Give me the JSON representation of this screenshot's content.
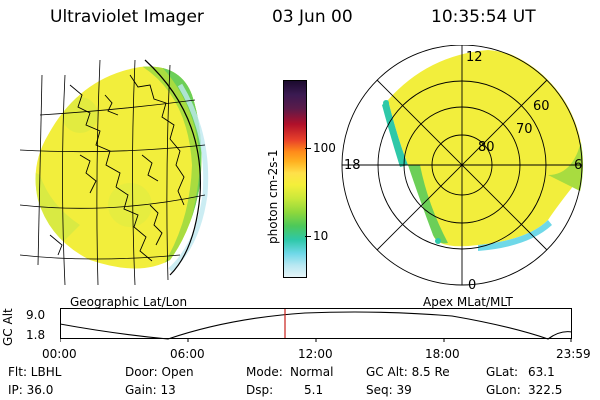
{
  "header": {
    "title": "Ultraviolet Imager",
    "date": "03 Jun 00",
    "time": "10:35:54 UT"
  },
  "geo_panel": {
    "label": "Geographic Lat/Lon"
  },
  "polar_panel": {
    "label": "Apex MLat/MLT",
    "lat_labels": [
      "60",
      "70",
      "80"
    ],
    "mlt_labels": {
      "top": "12",
      "left": "18",
      "right": "6",
      "bottom": "0"
    }
  },
  "colorbar": {
    "unit_label": "photon cm-2s-1",
    "ticks": [
      "100",
      "10"
    ],
    "colors": [
      "#1b0a2e",
      "#3b1a52",
      "#5a1b4a",
      "#b0102a",
      "#e8402a",
      "#ff8a1a",
      "#ffb020",
      "#ffe04a",
      "#f4ef3a",
      "#c9e83a",
      "#8fd83c",
      "#4cc85a",
      "#2ec8a8",
      "#6fd8e8",
      "#b8e8f2",
      "#e6f4f8"
    ]
  },
  "altitude_plot": {
    "ylabel": "GC Alt",
    "y_ticks": [
      "9.0",
      "1.8"
    ],
    "x_ticks": [
      "00:00",
      "06:00",
      "12:00",
      "18:00",
      "23:59"
    ],
    "current_time_marker_color": "#c8201c"
  },
  "info": {
    "row1": {
      "flt": "Flt: LBHL",
      "door": "Door: Open",
      "mode_label": "Mode:",
      "mode_value": "Normal",
      "gcalt": "GC Alt: 8.5 Re",
      "glat_label": "GLat:",
      "glat_value": "63.1"
    },
    "row2": {
      "ip": "IP: 36.0",
      "gain": "Gain: 13",
      "dsp_label": "Dsp:",
      "dsp_value": "5.1",
      "seq": "Seq: 39",
      "glon_label": "GLon:",
      "glon_value": "322.5"
    }
  }
}
